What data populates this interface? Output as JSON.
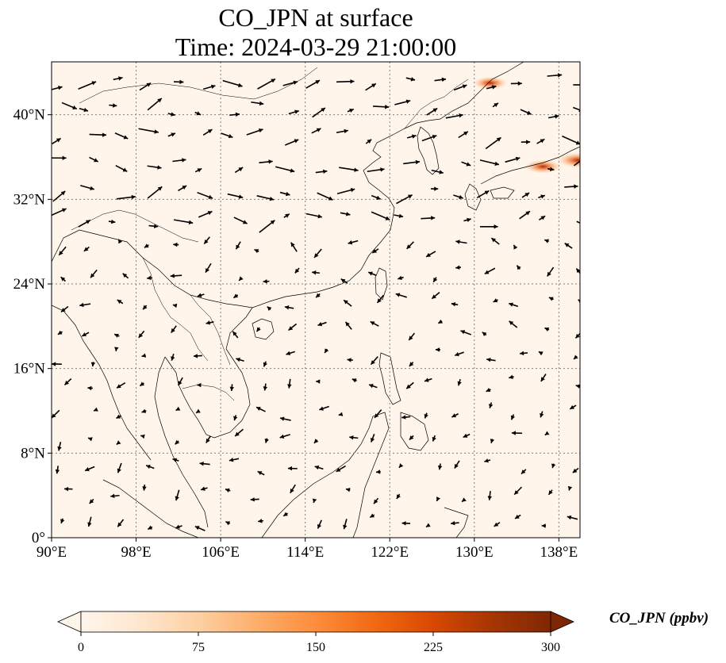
{
  "title": {
    "line1": "CO_JPN at surface",
    "line2": "Time: 2024-03-29 21:00:00"
  },
  "map": {
    "lon_range": [
      90,
      140
    ],
    "lat_range": [
      0,
      45
    ],
    "lon_ticks": [
      {
        "value": 90,
        "label": "90°E"
      },
      {
        "value": 98,
        "label": "98°E"
      },
      {
        "value": 106,
        "label": "106°E"
      },
      {
        "value": 114,
        "label": "114°E"
      },
      {
        "value": 122,
        "label": "122°E"
      },
      {
        "value": 130,
        "label": "130°E"
      },
      {
        "value": 138,
        "label": "138°E"
      }
    ],
    "lat_ticks": [
      {
        "value": 0,
        "label": "0°"
      },
      {
        "value": 8,
        "label": "8°N"
      },
      {
        "value": 16,
        "label": "16°N"
      },
      {
        "value": 24,
        "label": "24°N"
      },
      {
        "value": 32,
        "label": "32°N"
      },
      {
        "value": 40,
        "label": "40°N"
      }
    ],
    "gridlines": true,
    "background_color": "#fff5eb",
    "coastline_color": "#000000",
    "vector_color": "#000000",
    "high_concentration_spots": [
      {
        "lon": 131.5,
        "lat": 43.0,
        "level": 0.55
      },
      {
        "lon": 136.5,
        "lat": 35.1,
        "level": 0.6
      },
      {
        "lon": 139.8,
        "lat": 35.7,
        "level": 0.7
      }
    ]
  },
  "colorbar": {
    "label": "CO_JPN (ppbv)",
    "min": 0,
    "max": 300,
    "extend": "both",
    "ticks": [
      {
        "value": 0,
        "label": "0"
      },
      {
        "value": 75,
        "label": "75"
      },
      {
        "value": 150,
        "label": "150"
      },
      {
        "value": 225,
        "label": "225"
      },
      {
        "value": 300,
        "label": "300"
      }
    ],
    "colors": [
      "#fff5eb",
      "#fee6ce",
      "#fdd0a2",
      "#fdae6b",
      "#fd8d3c",
      "#f16913",
      "#d94801",
      "#a63603",
      "#7f2704"
    ]
  }
}
